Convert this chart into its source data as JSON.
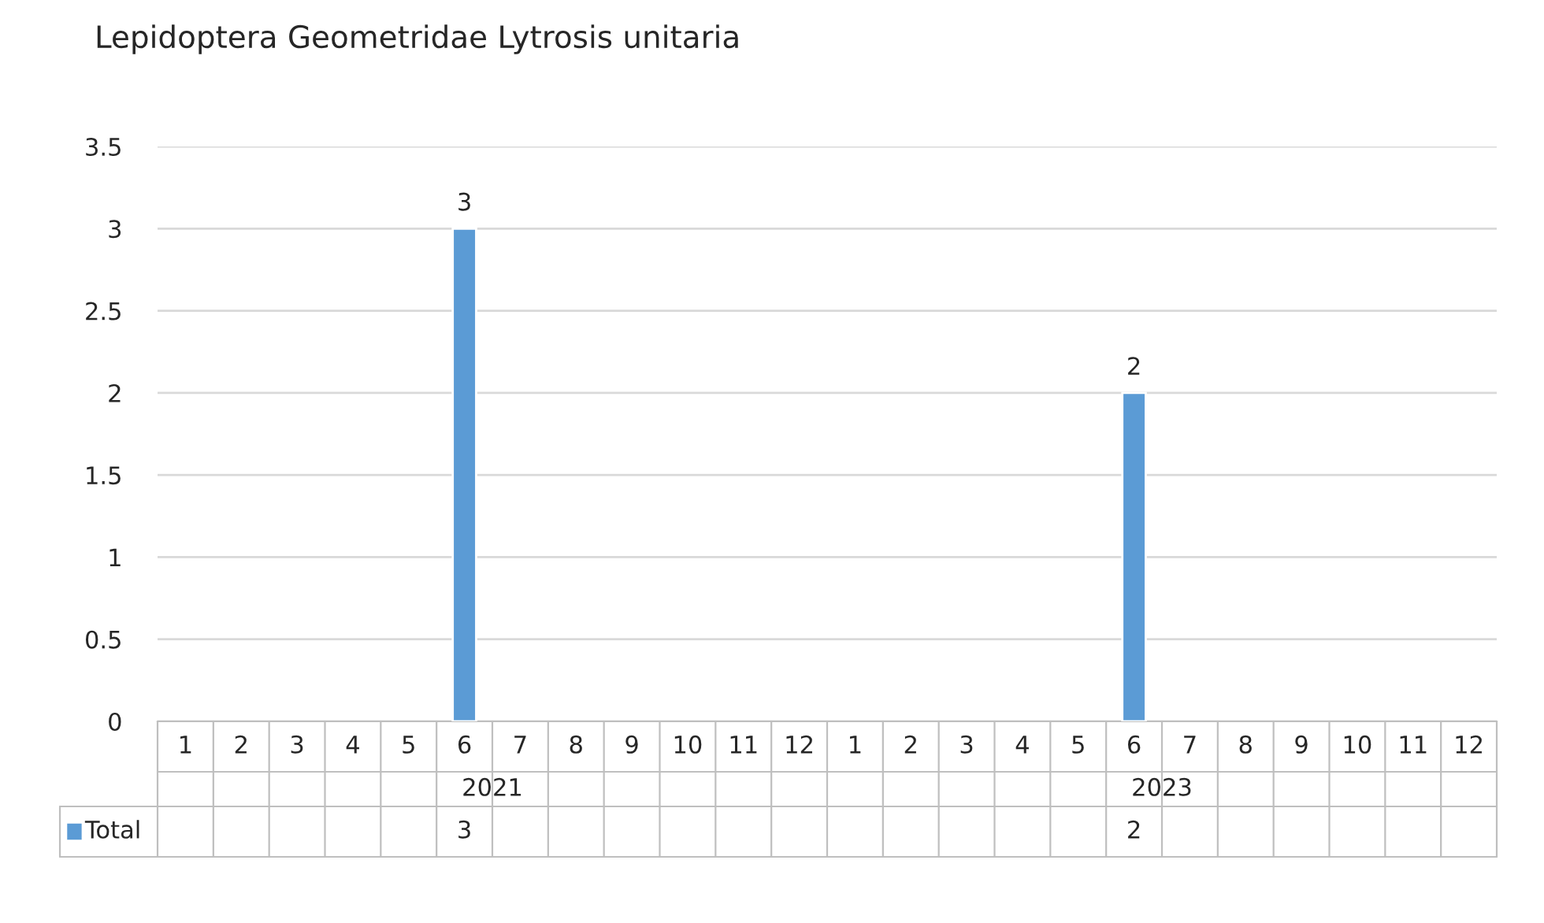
{
  "chart_data": {
    "type": "bar",
    "title": "Lepidoptera Geometridae Lytrosis unitaria",
    "categories": [
      "1",
      "2",
      "3",
      "4",
      "5",
      "6",
      "7",
      "8",
      "9",
      "10",
      "11",
      "12",
      "1",
      "2",
      "3",
      "4",
      "5",
      "6",
      "7",
      "8",
      "9",
      "10",
      "11",
      "12"
    ],
    "series": [
      {
        "name": "Total",
        "color": "#5b9bd5",
        "values": [
          null,
          null,
          null,
          null,
          null,
          3,
          null,
          null,
          null,
          null,
          null,
          null,
          null,
          null,
          null,
          null,
          null,
          2,
          null,
          null,
          null,
          null,
          null,
          null
        ]
      }
    ],
    "annotations": [
      "2021",
      "2023"
    ],
    "ylim": [
      0,
      3.5
    ],
    "yticks": [
      0,
      0.5,
      1,
      1.5,
      2,
      2.5,
      3,
      3.5
    ],
    "grid": "y",
    "data_labels": true,
    "legend": "bottom"
  }
}
